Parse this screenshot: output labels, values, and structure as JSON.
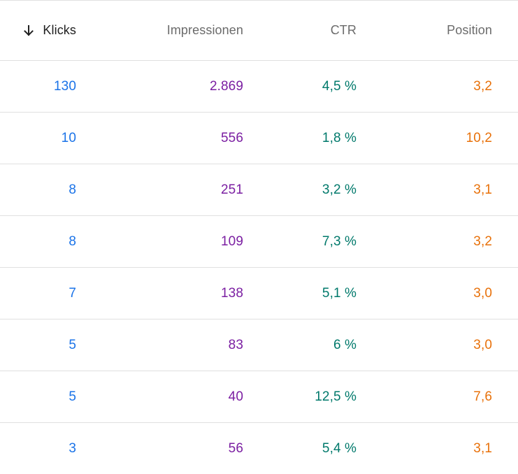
{
  "colors": {
    "klicks": "#1a73e8",
    "impressionen": "#7b1fa2",
    "ctr": "#00796b",
    "position": "#e8710a"
  },
  "header": {
    "sort_icon": "arrow-down-icon",
    "klicks": "Klicks",
    "impressionen": "Impressionen",
    "ctr": "CTR",
    "position": "Position"
  },
  "rows": [
    {
      "klicks": "130",
      "impressionen": "2.869",
      "ctr": "4,5 %",
      "position": "3,2"
    },
    {
      "klicks": "10",
      "impressionen": "556",
      "ctr": "1,8 %",
      "position": "10,2"
    },
    {
      "klicks": "8",
      "impressionen": "251",
      "ctr": "3,2 %",
      "position": "3,1"
    },
    {
      "klicks": "8",
      "impressionen": "109",
      "ctr": "7,3 %",
      "position": "3,2"
    },
    {
      "klicks": "7",
      "impressionen": "138",
      "ctr": "5,1 %",
      "position": "3,0"
    },
    {
      "klicks": "5",
      "impressionen": "83",
      "ctr": "6 %",
      "position": "3,0"
    },
    {
      "klicks": "5",
      "impressionen": "40",
      "ctr": "12,5 %",
      "position": "7,6"
    },
    {
      "klicks": "3",
      "impressionen": "56",
      "ctr": "5,4 %",
      "position": "3,1"
    }
  ]
}
